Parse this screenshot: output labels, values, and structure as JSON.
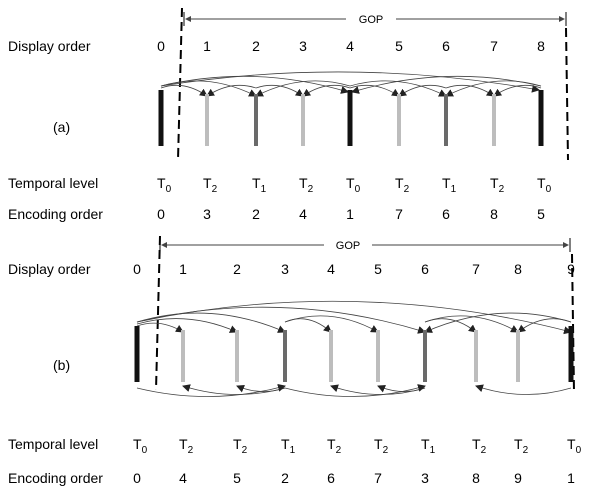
{
  "row_labels": {
    "display_order": "Display order",
    "temporal_level": "Temporal level",
    "encoding_order": "Encoding order"
  },
  "gop_label": "GOP",
  "panel_a": {
    "tag": "(a)",
    "display": [
      "0",
      "1",
      "2",
      "3",
      "4",
      "5",
      "6",
      "7",
      "8"
    ],
    "temporal": [
      {
        "letter": "T",
        "sub": "0"
      },
      {
        "letter": "T",
        "sub": "2"
      },
      {
        "letter": "T",
        "sub": "1"
      },
      {
        "letter": "T",
        "sub": "2"
      },
      {
        "letter": "T",
        "sub": "0"
      },
      {
        "letter": "T",
        "sub": "2"
      },
      {
        "letter": "T",
        "sub": "1"
      },
      {
        "letter": "T",
        "sub": "2"
      },
      {
        "letter": "T",
        "sub": "0"
      }
    ],
    "encoding": [
      "0",
      "3",
      "2",
      "4",
      "1",
      "7",
      "6",
      "8",
      "5"
    ],
    "frame_levels": [
      0,
      2,
      1,
      2,
      0,
      2,
      1,
      2,
      0
    ]
  },
  "panel_b": {
    "tag": "(b)",
    "display": [
      "0",
      "1",
      "2",
      "3",
      "4",
      "5",
      "6",
      "7",
      "8",
      "9"
    ],
    "temporal": [
      {
        "letter": "T",
        "sub": "0"
      },
      {
        "letter": "T",
        "sub": "2"
      },
      {
        "letter": "T",
        "sub": "2"
      },
      {
        "letter": "T",
        "sub": "1"
      },
      {
        "letter": "T",
        "sub": "2"
      },
      {
        "letter": "T",
        "sub": "2"
      },
      {
        "letter": "T",
        "sub": "1"
      },
      {
        "letter": "T",
        "sub": "2"
      },
      {
        "letter": "T",
        "sub": "2"
      },
      {
        "letter": "T",
        "sub": "0"
      }
    ],
    "encoding": [
      "0",
      "4",
      "5",
      "2",
      "6",
      "7",
      "3",
      "8",
      "9",
      "1"
    ],
    "frame_levels": [
      0,
      2,
      2,
      1,
      2,
      2,
      1,
      2,
      2,
      0
    ]
  },
  "colors": {
    "level0": "#111111",
    "level1": "#6a6a6a",
    "level2": "#bdbdbd",
    "arrow": "#444444"
  }
}
